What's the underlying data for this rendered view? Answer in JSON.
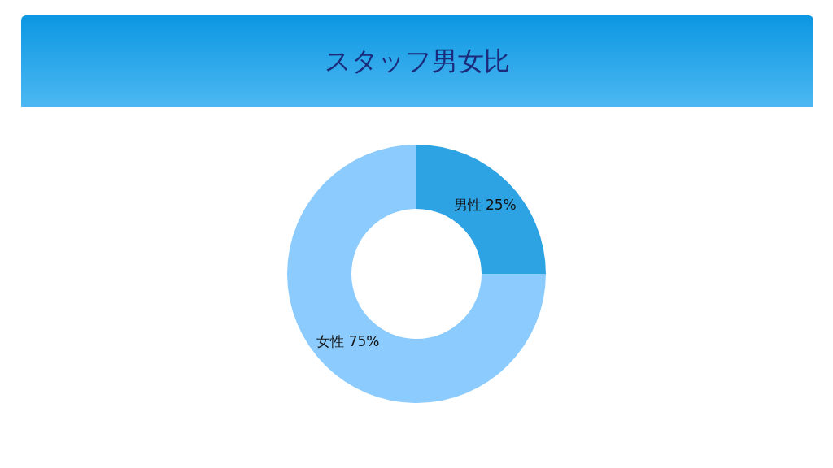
{
  "chart_data": {
    "type": "donut",
    "title": "スタッフ男女比",
    "categories": [
      "男性",
      "女性"
    ],
    "values": [
      25,
      75
    ],
    "colors": [
      "#2ea3e3",
      "#8ccbfd"
    ],
    "value_labels": [
      "25%",
      "75%"
    ]
  }
}
